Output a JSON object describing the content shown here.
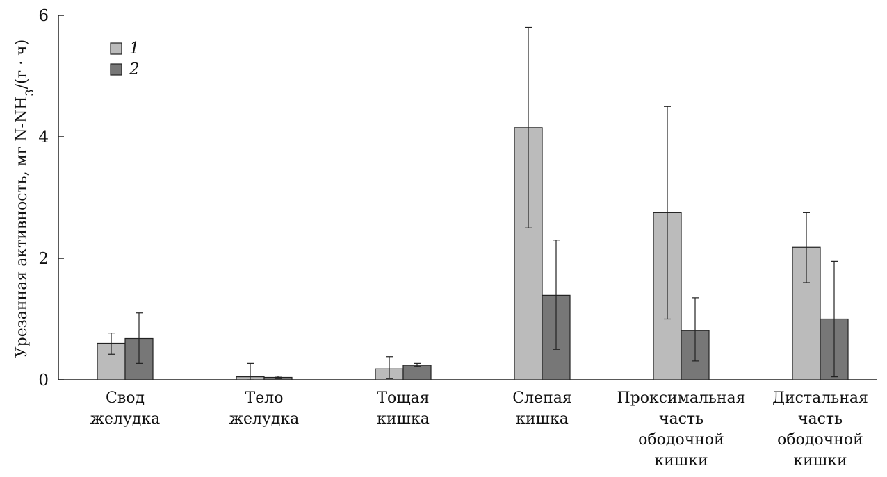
{
  "chart_data": {
    "type": "bar",
    "title": "",
    "xlabel": "",
    "ylabel": "Урезанная активность, мг N-NH3/(г · ч)",
    "ylim": [
      0,
      6
    ],
    "yticks": [
      0,
      2,
      4,
      6
    ],
    "grid": false,
    "legend_position": "top-left",
    "categories": [
      [
        "Свод",
        "желудка"
      ],
      [
        "Тело",
        "желудка"
      ],
      [
        "Тощая",
        "кишка"
      ],
      [
        "Слепая",
        "кишка"
      ],
      [
        "Проксимальная",
        "часть",
        "ободочной",
        "кишки"
      ],
      [
        "Дистальная",
        "часть",
        "ободочной",
        "кишки"
      ]
    ],
    "series": [
      {
        "name": "1",
        "color": "#bbbbbb",
        "values": [
          0.6,
          0.05,
          0.18,
          4.15,
          2.75,
          2.18
        ],
        "err_low": [
          0.42,
          0.0,
          0.02,
          2.5,
          1.0,
          1.6
        ],
        "err_high": [
          0.77,
          0.27,
          0.38,
          5.8,
          4.5,
          2.75
        ]
      },
      {
        "name": "2",
        "color": "#777777",
        "values": [
          0.68,
          0.04,
          0.24,
          1.39,
          0.81,
          1.0
        ],
        "err_low": [
          0.27,
          0.02,
          0.22,
          0.5,
          0.31,
          0.05
        ],
        "err_high": [
          1.1,
          0.06,
          0.27,
          2.3,
          1.35,
          1.95
        ]
      }
    ]
  }
}
